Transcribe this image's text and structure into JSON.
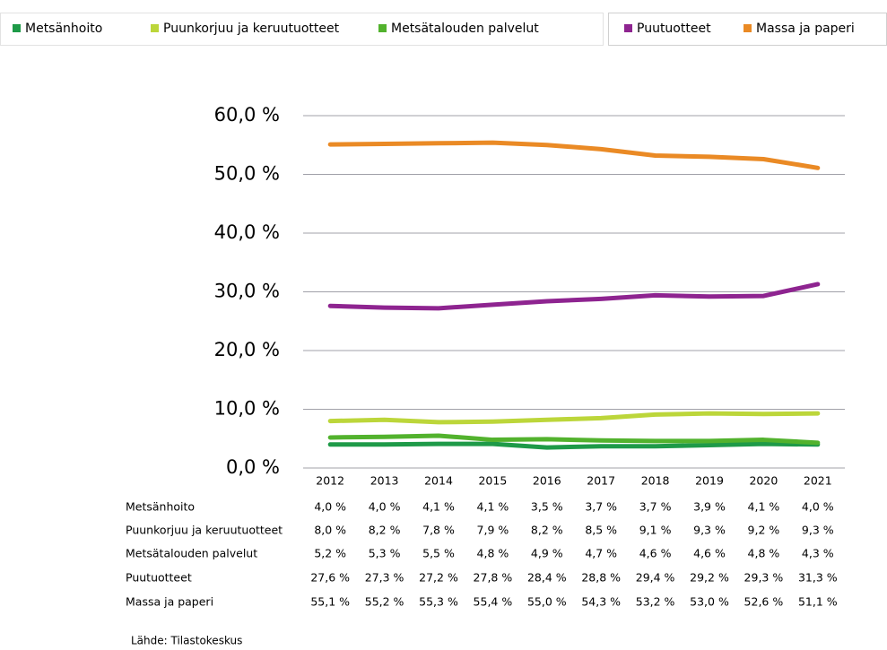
{
  "chart_data": {
    "type": "line",
    "categories": [
      "2012",
      "2013",
      "2014",
      "2015",
      "2016",
      "2017",
      "2018",
      "2019",
      "2020",
      "2021"
    ],
    "series": [
      {
        "name": "Metsänhoito",
        "color": "#1e9a48",
        "values": [
          4.0,
          4.0,
          4.1,
          4.1,
          3.5,
          3.7,
          3.7,
          3.9,
          4.1,
          4.0
        ],
        "value_labels": [
          "4,0 %",
          "4,0 %",
          "4,1 %",
          "4,1 %",
          "3,5 %",
          "3,7 %",
          "3,7 %",
          "3,9 %",
          "4,1 %",
          "4,0 %"
        ]
      },
      {
        "name": "Puunkorjuu ja keruutuotteet",
        "color": "#bcd63a",
        "values": [
          8.0,
          8.2,
          7.8,
          7.9,
          8.2,
          8.5,
          9.1,
          9.3,
          9.2,
          9.3
        ],
        "value_labels": [
          "8,0 %",
          "8,2 %",
          "7,8 %",
          "7,9 %",
          "8,2 %",
          "8,5 %",
          "9,1 %",
          "9,3 %",
          "9,2 %",
          "9,3 %"
        ]
      },
      {
        "name": "Metsätalouden palvelut",
        "color": "#52b22d",
        "values": [
          5.2,
          5.3,
          5.5,
          4.8,
          4.9,
          4.7,
          4.6,
          4.6,
          4.8,
          4.3
        ],
        "value_labels": [
          "5,2 %",
          "5,3 %",
          "5,5 %",
          "4,8 %",
          "4,9 %",
          "4,7 %",
          "4,6 %",
          "4,6 %",
          "4,8 %",
          "4,3 %"
        ]
      },
      {
        "name": "Puutuotteet",
        "color": "#8e2490",
        "values": [
          27.6,
          27.3,
          27.2,
          27.8,
          28.4,
          28.8,
          29.4,
          29.2,
          29.3,
          31.3
        ],
        "value_labels": [
          "27,6 %",
          "27,3 %",
          "27,2 %",
          "27,8 %",
          "28,4 %",
          "28,8 %",
          "29,4 %",
          "29,2 %",
          "29,3 %",
          "31,3 %"
        ]
      },
      {
        "name": "Massa ja paperi",
        "color": "#ea8a25",
        "values": [
          55.1,
          55.2,
          55.3,
          55.4,
          55.0,
          54.3,
          53.2,
          53.0,
          52.6,
          51.1
        ],
        "value_labels": [
          "55,1 %",
          "55,2 %",
          "55,3 %",
          "55,4 %",
          "55,0 %",
          "54,3 %",
          "53,2 %",
          "53,0 %",
          "52,6 %",
          "51,1 %"
        ]
      }
    ],
    "ylim": [
      0,
      60
    ],
    "yticks": [
      {
        "value": 0,
        "label": "0,0 %"
      },
      {
        "value": 10,
        "label": "10,0 %"
      },
      {
        "value": 20,
        "label": "20,0 %"
      },
      {
        "value": 30,
        "label": "30,0 %"
      },
      {
        "value": 40,
        "label": "40,0 %"
      },
      {
        "value": 50,
        "label": "50,0 %"
      },
      {
        "value": 60,
        "label": "60,0 %"
      }
    ],
    "grid": true,
    "source": "Lähde: Tilastokeskus"
  }
}
